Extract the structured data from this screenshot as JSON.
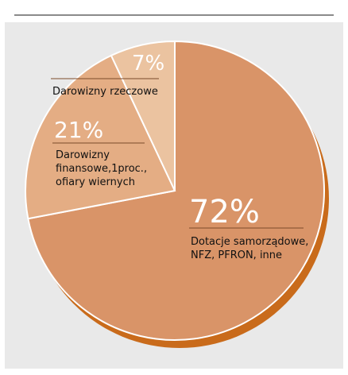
{
  "chart_data": {
    "type": "pie",
    "slices": [
      {
        "percent_label": "72%",
        "value": 72,
        "label_lines": [
          "Dotacje samorządowe,",
          "NFZ, PFRON, inne"
        ],
        "color": "#d99468"
      },
      {
        "percent_label": "21%",
        "value": 21,
        "label_lines": [
          "Darowizny",
          "finansowe,1proc.,",
          "ofiary wiernych"
        ],
        "color": "#e4ad84"
      },
      {
        "percent_label": "7%",
        "value": 7,
        "label_lines": [
          "Darowizny rzeczowe"
        ],
        "color": "#ebc3a0"
      }
    ],
    "shadow_color": "#c96b1b",
    "background": "#e9e9e9"
  }
}
